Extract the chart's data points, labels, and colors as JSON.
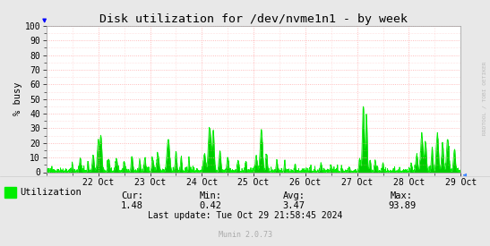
{
  "title": "Disk utilization for /dev/nvme1n1 - by week",
  "ylabel": "% busy",
  "bg_color": "#e8e8e8",
  "plot_bg_color": "#ffffff",
  "grid_color": "#ffaaaa",
  "line_color": "#00ee00",
  "fill_color": "#00cc00",
  "ylim": [
    0,
    100
  ],
  "yticks": [
    0,
    10,
    20,
    30,
    40,
    50,
    60,
    70,
    80,
    90,
    100
  ],
  "x_labels": [
    "22 Oct",
    "23 Oct",
    "24 Oct",
    "25 Oct",
    "26 Oct",
    "27 Oct",
    "28 Oct",
    "29 Oct"
  ],
  "cur": "1.48",
  "min": "0.42",
  "avg": "3.47",
  "max": "93.89",
  "last_update": "Last update: Tue Oct 29 21:58:45 2024",
  "munin_version": "Munin 2.0.73",
  "legend_label": "Utilization",
  "watermark": "RRDTOOL / TOBI OETIKER",
  "n_points": 2016,
  "xlim": [
    0,
    8
  ],
  "n_days": 8
}
